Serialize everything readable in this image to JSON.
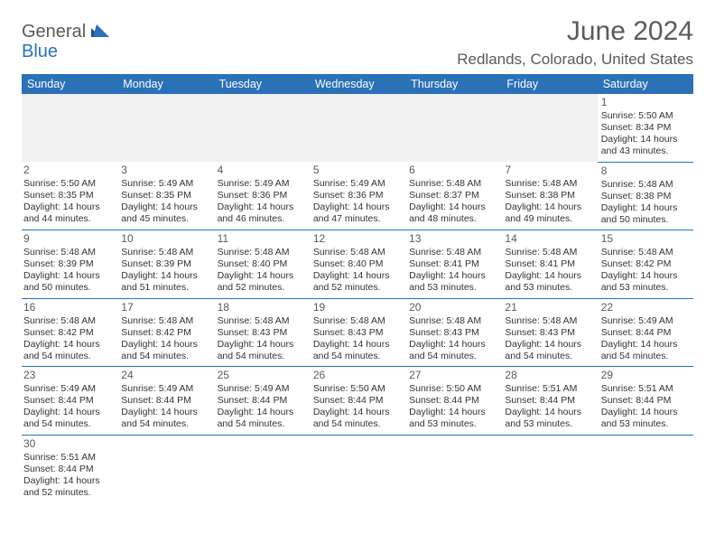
{
  "logo": {
    "text1": "General",
    "text2": "Blue"
  },
  "title": "June 2024",
  "location": "Redlands, Colorado, United States",
  "header_bg": "#2a71b8",
  "text_color": "#5a5a5a",
  "weekdays": [
    "Sunday",
    "Monday",
    "Tuesday",
    "Wednesday",
    "Thursday",
    "Friday",
    "Saturday"
  ],
  "days": {
    "1": {
      "sr": "5:50 AM",
      "ss": "8:34 PM",
      "dl": "14 hours and 43 minutes."
    },
    "2": {
      "sr": "5:50 AM",
      "ss": "8:35 PM",
      "dl": "14 hours and 44 minutes."
    },
    "3": {
      "sr": "5:49 AM",
      "ss": "8:35 PM",
      "dl": "14 hours and 45 minutes."
    },
    "4": {
      "sr": "5:49 AM",
      "ss": "8:36 PM",
      "dl": "14 hours and 46 minutes."
    },
    "5": {
      "sr": "5:49 AM",
      "ss": "8:36 PM",
      "dl": "14 hours and 47 minutes."
    },
    "6": {
      "sr": "5:48 AM",
      "ss": "8:37 PM",
      "dl": "14 hours and 48 minutes."
    },
    "7": {
      "sr": "5:48 AM",
      "ss": "8:38 PM",
      "dl": "14 hours and 49 minutes."
    },
    "8": {
      "sr": "5:48 AM",
      "ss": "8:38 PM",
      "dl": "14 hours and 50 minutes."
    },
    "9": {
      "sr": "5:48 AM",
      "ss": "8:39 PM",
      "dl": "14 hours and 50 minutes."
    },
    "10": {
      "sr": "5:48 AM",
      "ss": "8:39 PM",
      "dl": "14 hours and 51 minutes."
    },
    "11": {
      "sr": "5:48 AM",
      "ss": "8:40 PM",
      "dl": "14 hours and 52 minutes."
    },
    "12": {
      "sr": "5:48 AM",
      "ss": "8:40 PM",
      "dl": "14 hours and 52 minutes."
    },
    "13": {
      "sr": "5:48 AM",
      "ss": "8:41 PM",
      "dl": "14 hours and 53 minutes."
    },
    "14": {
      "sr": "5:48 AM",
      "ss": "8:41 PM",
      "dl": "14 hours and 53 minutes."
    },
    "15": {
      "sr": "5:48 AM",
      "ss": "8:42 PM",
      "dl": "14 hours and 53 minutes."
    },
    "16": {
      "sr": "5:48 AM",
      "ss": "8:42 PM",
      "dl": "14 hours and 54 minutes."
    },
    "17": {
      "sr": "5:48 AM",
      "ss": "8:42 PM",
      "dl": "14 hours and 54 minutes."
    },
    "18": {
      "sr": "5:48 AM",
      "ss": "8:43 PM",
      "dl": "14 hours and 54 minutes."
    },
    "19": {
      "sr": "5:48 AM",
      "ss": "8:43 PM",
      "dl": "14 hours and 54 minutes."
    },
    "20": {
      "sr": "5:48 AM",
      "ss": "8:43 PM",
      "dl": "14 hours and 54 minutes."
    },
    "21": {
      "sr": "5:48 AM",
      "ss": "8:43 PM",
      "dl": "14 hours and 54 minutes."
    },
    "22": {
      "sr": "5:49 AM",
      "ss": "8:44 PM",
      "dl": "14 hours and 54 minutes."
    },
    "23": {
      "sr": "5:49 AM",
      "ss": "8:44 PM",
      "dl": "14 hours and 54 minutes."
    },
    "24": {
      "sr": "5:49 AM",
      "ss": "8:44 PM",
      "dl": "14 hours and 54 minutes."
    },
    "25": {
      "sr": "5:49 AM",
      "ss": "8:44 PM",
      "dl": "14 hours and 54 minutes."
    },
    "26": {
      "sr": "5:50 AM",
      "ss": "8:44 PM",
      "dl": "14 hours and 54 minutes."
    },
    "27": {
      "sr": "5:50 AM",
      "ss": "8:44 PM",
      "dl": "14 hours and 53 minutes."
    },
    "28": {
      "sr": "5:51 AM",
      "ss": "8:44 PM",
      "dl": "14 hours and 53 minutes."
    },
    "29": {
      "sr": "5:51 AM",
      "ss": "8:44 PM",
      "dl": "14 hours and 53 minutes."
    },
    "30": {
      "sr": "5:51 AM",
      "ss": "8:44 PM",
      "dl": "14 hours and 52 minutes."
    }
  },
  "labels": {
    "sunrise": "Sunrise:",
    "sunset": "Sunset:",
    "daylight": "Daylight:"
  },
  "layout": [
    [
      null,
      null,
      null,
      null,
      null,
      null,
      "1"
    ],
    [
      "2",
      "3",
      "4",
      "5",
      "6",
      "7",
      "8"
    ],
    [
      "9",
      "10",
      "11",
      "12",
      "13",
      "14",
      "15"
    ],
    [
      "16",
      "17",
      "18",
      "19",
      "20",
      "21",
      "22"
    ],
    [
      "23",
      "24",
      "25",
      "26",
      "27",
      "28",
      "29"
    ],
    [
      "30",
      null,
      null,
      null,
      null,
      null,
      null
    ]
  ]
}
